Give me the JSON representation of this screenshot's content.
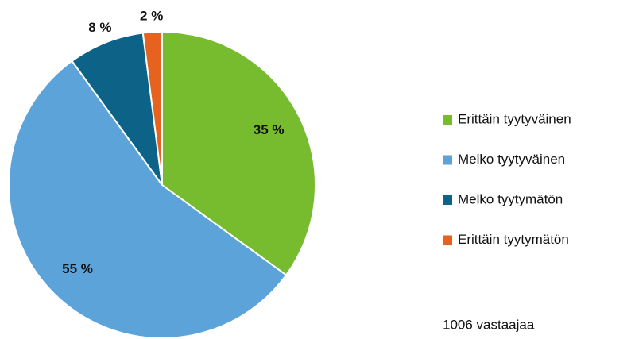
{
  "chart_data": {
    "type": "pie",
    "categories": [
      "Erittäin tyytyväinen",
      "Melko tyytyväinen",
      "Melko tyytymätön",
      "Erittäin tyytymätön"
    ],
    "values": [
      35,
      55,
      8,
      2
    ],
    "value_labels": [
      "35 %",
      "55 %",
      "8 %",
      "2 %"
    ],
    "colors": [
      "#77bc2f",
      "#5ba3d9",
      "#0d6287",
      "#e5631e"
    ],
    "annotation": "1006 vastaajaa"
  }
}
